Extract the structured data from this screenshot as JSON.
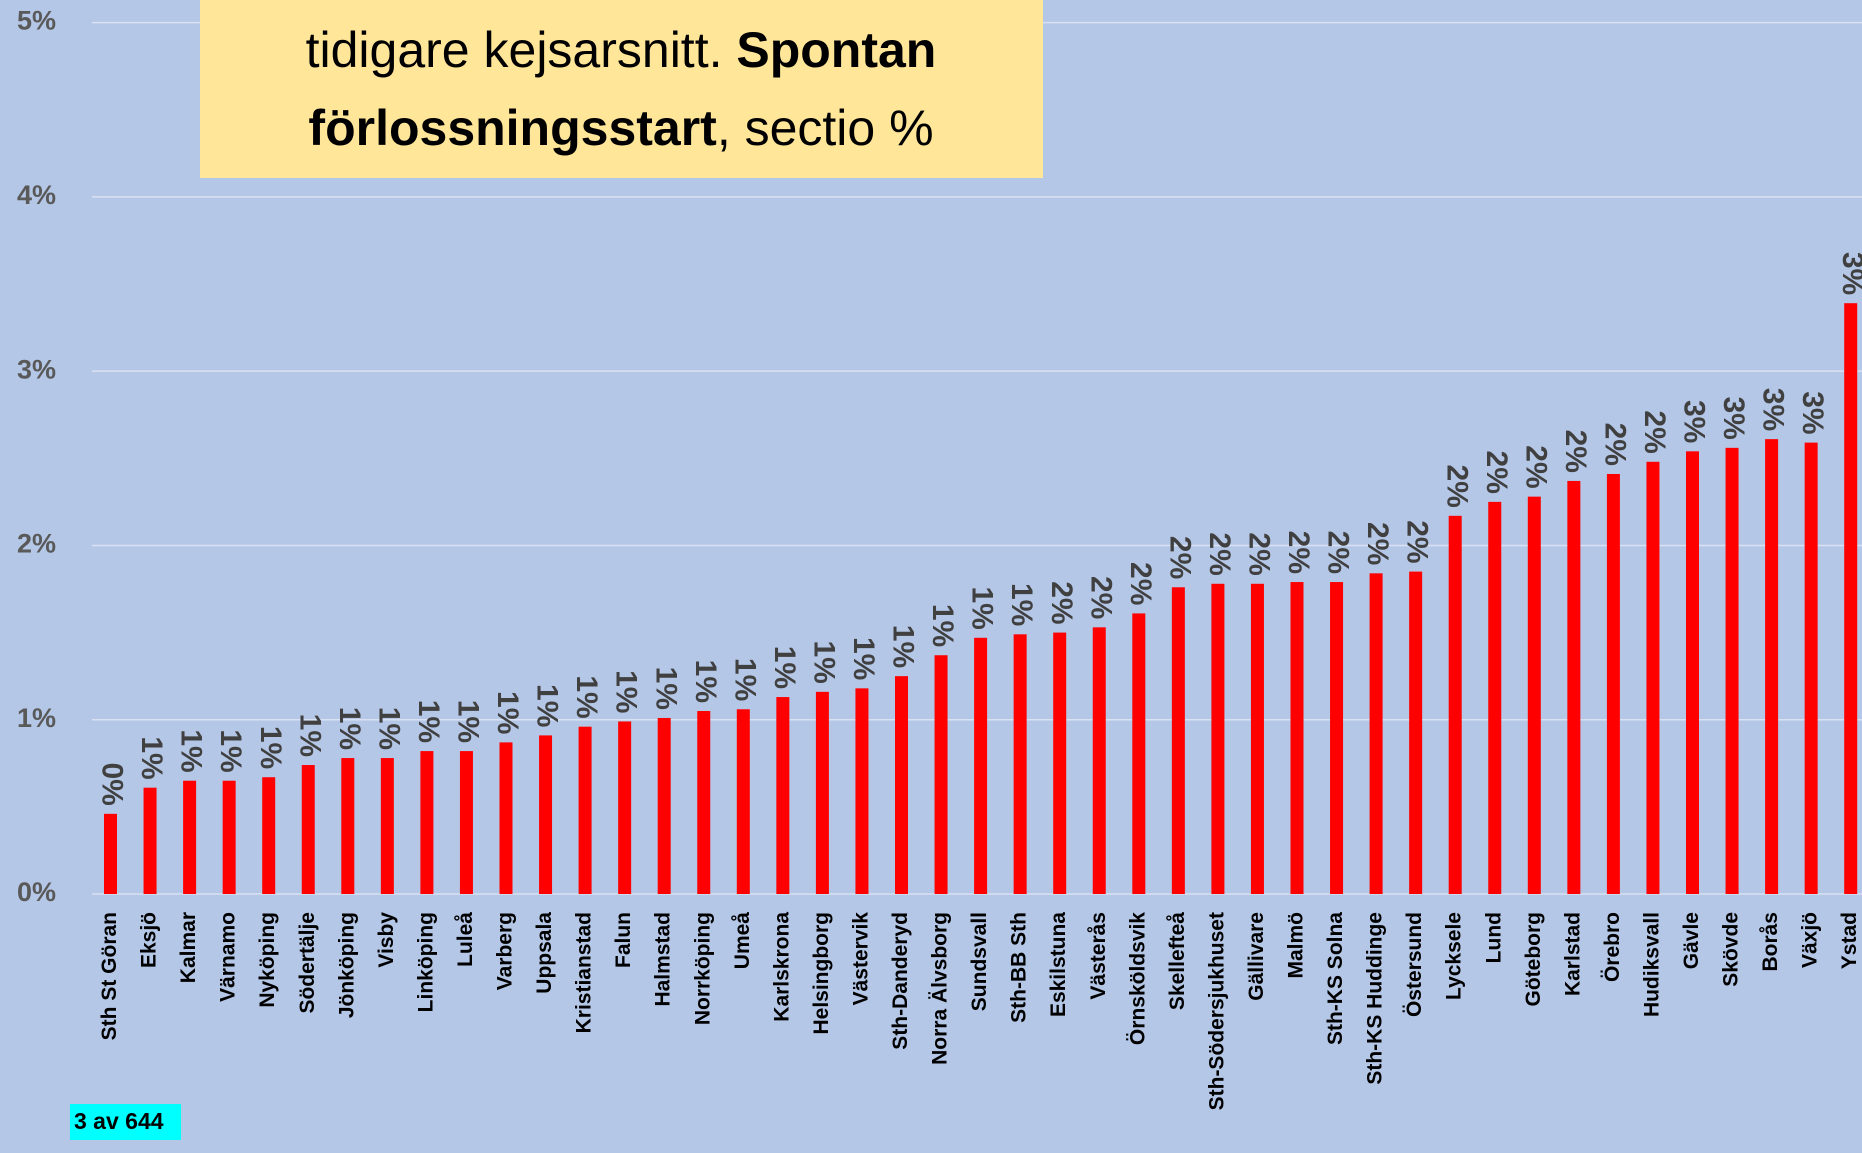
{
  "chart_data": {
    "type": "bar",
    "title": [
      [
        {
          "text": "tidigare kejsarsnitt. ",
          "bold": false
        },
        {
          "text": "Spontan",
          "bold": true
        }
      ],
      [
        {
          "text": "förlossningsstart",
          "bold": true
        },
        {
          "text": ", sectio %",
          "bold": false
        }
      ]
    ],
    "footnote": "3 av 644",
    "categories": [
      "Sth St Göran",
      "Eksjö",
      "Kalmar",
      "Värnamo",
      "Nyköping",
      "Södertälje",
      "Jönköping",
      "Visby",
      "Linköping",
      "Luleå",
      "Varberg",
      "Uppsala",
      "Kristianstad",
      "Falun",
      "Halmstad",
      "Norrköping",
      "Umeå",
      "Karlskrona",
      "Helsingborg",
      "Västervik",
      "Sth-Danderyd",
      "Norra Älvsborg",
      "Sundsvall",
      "Sth-BB Sth",
      "Eskilstuna",
      "Västerås",
      "Örnsköldsvik",
      "Skellefteå",
      "Sth-Södersjukhuset",
      "Gällivare",
      "Malmö",
      "Sth-KS Solna",
      "Sth-KS Huddinge",
      "Östersund",
      "Lycksele",
      "Lund",
      "Göteborg",
      "Karlstad",
      "Örebro",
      "Hudiksvall",
      "Gävle",
      "Skövde",
      "Borås",
      "Växjö",
      "Ystad"
    ],
    "values": [
      0.46,
      0.61,
      0.65,
      0.65,
      0.67,
      0.74,
      0.78,
      0.78,
      0.82,
      0.82,
      0.87,
      0.91,
      0.96,
      0.99,
      1.01,
      1.05,
      1.06,
      1.13,
      1.16,
      1.18,
      1.25,
      1.37,
      1.47,
      1.49,
      1.5,
      1.53,
      1.61,
      1.76,
      1.78,
      1.78,
      1.79,
      1.79,
      1.84,
      1.85,
      2.17,
      2.25,
      2.28,
      2.37,
      2.41,
      2.48,
      2.54,
      2.56,
      2.61,
      2.59,
      3.39
    ],
    "value_labels": [
      "0%",
      "1%",
      "1%",
      "1%",
      "1%",
      "1%",
      "1%",
      "1%",
      "1%",
      "1%",
      "1%",
      "1%",
      "1%",
      "1%",
      "1%",
      "1%",
      "1%",
      "1%",
      "1%",
      "1%",
      "1%",
      "1%",
      "1%",
      "1%",
      "2%",
      "2%",
      "2%",
      "2%",
      "2%",
      "2%",
      "2%",
      "2%",
      "2%",
      "2%",
      "2%",
      "2%",
      "2%",
      "2%",
      "2%",
      "2%",
      "3%",
      "3%",
      "3%",
      "3%",
      "3%"
    ],
    "color": "#ff0000",
    "ylim": [
      0,
      5
    ],
    "yticks": [
      {
        "value": 0,
        "label": "0%"
      },
      {
        "value": 1,
        "label": "1%"
      },
      {
        "value": 2,
        "label": "2%"
      },
      {
        "value": 3,
        "label": "3%"
      },
      {
        "value": 4,
        "label": "4%"
      },
      {
        "value": 5,
        "label": "5%"
      }
    ],
    "grid": true
  }
}
